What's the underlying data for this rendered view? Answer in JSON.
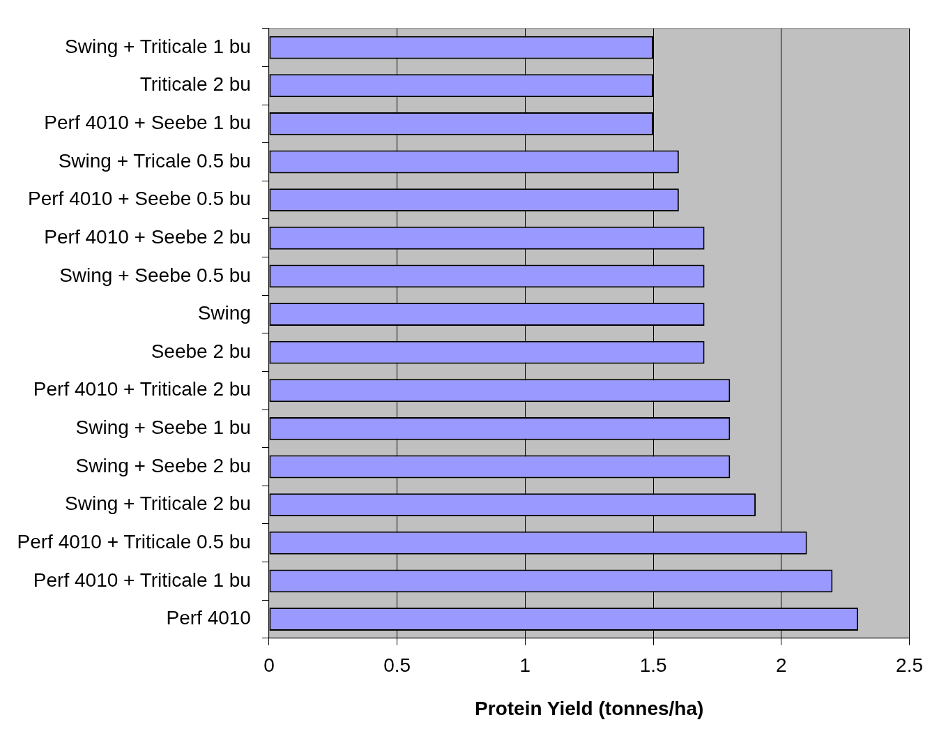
{
  "chart_data": {
    "type": "bar",
    "orientation": "horizontal",
    "xlabel": "Protein Yield (tonnes/ha)",
    "categories": [
      "Swing + Triticale 1 bu",
      "Triticale 2 bu",
      "Perf 4010 + Seebe 1 bu",
      "Swing + Tricale 0.5 bu",
      "Perf 4010 + Seebe 0.5 bu",
      "Perf 4010 + Seebe 2 bu",
      "Swing + Seebe 0.5 bu",
      "Swing",
      "Seebe 2 bu",
      "Perf 4010 + Triticale 2 bu",
      "Swing + Seebe 1 bu",
      "Swing + Seebe 2 bu",
      "Swing + Triticale 2 bu",
      "Perf 4010 + Triticale 0.5 bu",
      "Perf 4010 + Triticale 1 bu",
      "Perf 4010"
    ],
    "values": [
      1.5,
      1.5,
      1.5,
      1.6,
      1.6,
      1.7,
      1.7,
      1.7,
      1.7,
      1.8,
      1.8,
      1.8,
      1.9,
      2.1,
      2.2,
      2.3
    ],
    "color": "#9999ff",
    "xlim": [
      0,
      2.5
    ],
    "xticks": [
      0,
      0.5,
      1,
      1.5,
      2,
      2.5
    ],
    "grid": "x",
    "legend": false
  }
}
